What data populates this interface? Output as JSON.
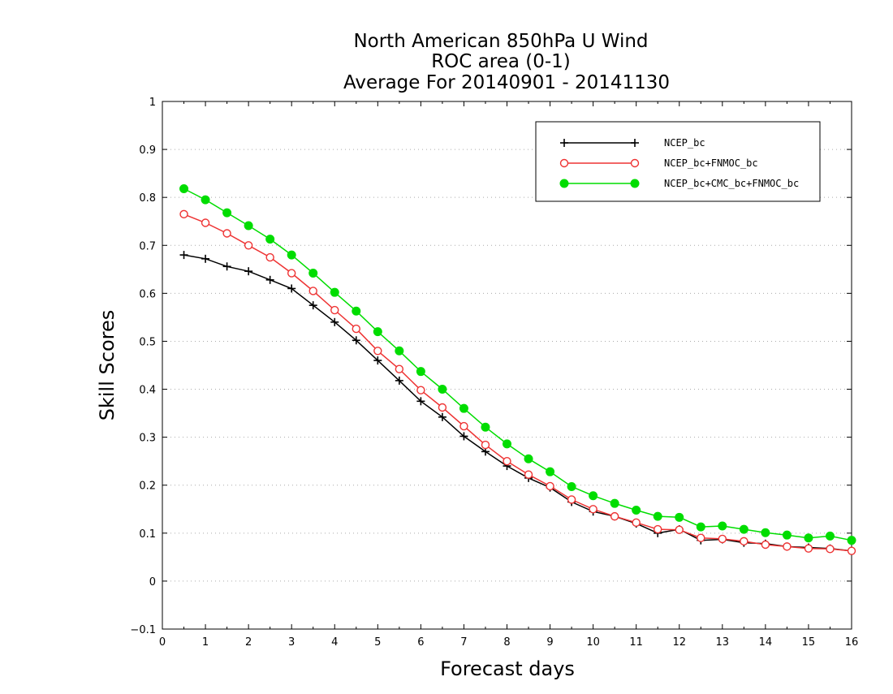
{
  "chart_data": {
    "type": "line",
    "title_lines": [
      "North American 850hPa U Wind",
      "ROC area (0-1)",
      "Average For 20140901 - 20141130"
    ],
    "xlabel": "Forecast days",
    "ylabel": "Skill Scores",
    "xlim": [
      0,
      16
    ],
    "ylim": [
      -0.1,
      1
    ],
    "xticks": [
      "0",
      "1",
      "2",
      "3",
      "4",
      "5",
      "6",
      "7",
      "8",
      "9",
      "10",
      "11",
      "12",
      "13",
      "14",
      "15",
      "16"
    ],
    "yticks": [
      "−0.1",
      "0",
      "0.1",
      "0.2",
      "0.3",
      "0.4",
      "0.5",
      "0.6",
      "0.7",
      "0.8",
      "0.9",
      "1"
    ],
    "grid": "horizontal dotted",
    "legend_position": "top-right",
    "x": [
      0.5,
      1.0,
      1.5,
      2.0,
      2.5,
      3.0,
      3.5,
      4.0,
      4.5,
      5.0,
      5.5,
      6.0,
      6.5,
      7.0,
      7.5,
      8.0,
      8.5,
      9.0,
      9.5,
      10.0,
      10.5,
      11.0,
      11.5,
      12.0,
      12.5,
      13.0,
      13.5,
      14.0,
      14.5,
      15.0,
      15.5,
      16.0
    ],
    "series": [
      {
        "name": "NCEP_bc",
        "color": "#000000",
        "marker": "plus",
        "values": [
          0.68,
          0.672,
          0.656,
          0.646,
          0.628,
          0.61,
          0.575,
          0.54,
          0.502,
          0.46,
          0.418,
          0.375,
          0.342,
          0.302,
          0.27,
          0.24,
          0.215,
          0.195,
          0.165,
          0.145,
          0.135,
          0.12,
          0.1,
          0.108,
          0.085,
          0.087,
          0.08,
          0.078,
          0.072,
          0.07,
          0.068,
          0.063
        ]
      },
      {
        "name": "NCEP_bc+FNMOC_bc",
        "color": "#ee3333",
        "marker": "open-circle",
        "values": [
          0.765,
          0.747,
          0.725,
          0.7,
          0.675,
          0.642,
          0.605,
          0.565,
          0.526,
          0.48,
          0.442,
          0.398,
          0.362,
          0.323,
          0.284,
          0.25,
          0.222,
          0.198,
          0.17,
          0.15,
          0.135,
          0.122,
          0.108,
          0.107,
          0.09,
          0.088,
          0.083,
          0.076,
          0.072,
          0.068,
          0.067,
          0.063
        ]
      },
      {
        "name": "NCEP_bc+CMC_bc+FNMOC_bc",
        "color": "#00dd00",
        "marker": "filled-circle",
        "values": [
          0.818,
          0.795,
          0.768,
          0.741,
          0.713,
          0.68,
          0.642,
          0.602,
          0.563,
          0.52,
          0.48,
          0.437,
          0.4,
          0.36,
          0.321,
          0.286,
          0.255,
          0.228,
          0.197,
          0.178,
          0.162,
          0.148,
          0.135,
          0.133,
          0.113,
          0.115,
          0.108,
          0.101,
          0.096,
          0.09,
          0.094,
          0.085
        ]
      }
    ]
  }
}
